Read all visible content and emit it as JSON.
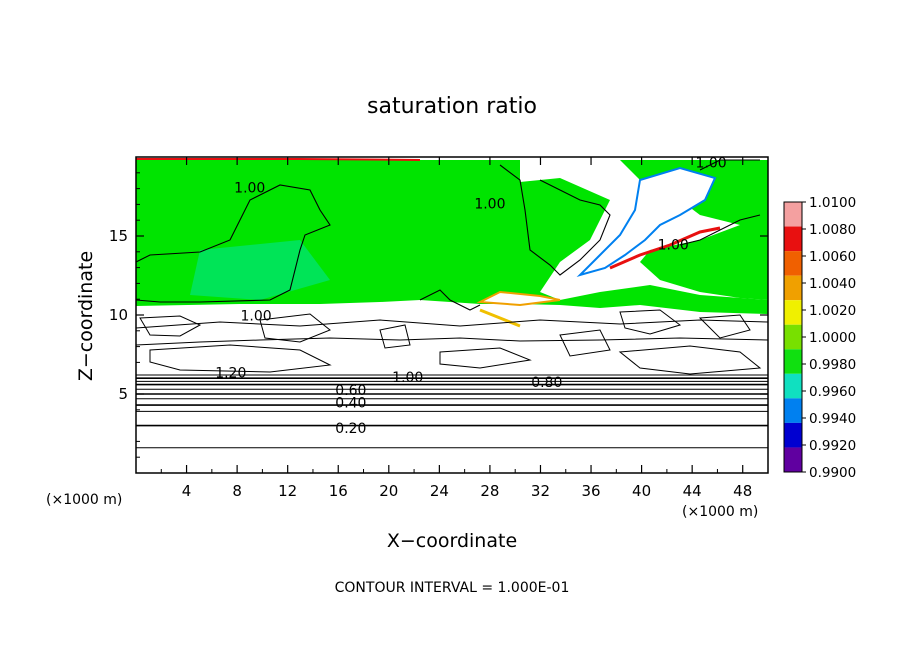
{
  "chart_data": {
    "type": "heatmap",
    "title": "saturation ratio",
    "xlabel": "X−coordinate",
    "ylabel": "Z−coordinate",
    "x_unit": "(×1000 m)",
    "y_unit": "(×1000 m)",
    "xlim": [
      0,
      50
    ],
    "ylim": [
      0,
      20
    ],
    "x_ticks": [
      4,
      8,
      12,
      16,
      20,
      24,
      28,
      32,
      36,
      40,
      44,
      48
    ],
    "x_tick_labels": [
      "4",
      "8",
      "12",
      "16",
      "20",
      "24",
      "28",
      "32",
      "36",
      "40",
      "44",
      "48"
    ],
    "y_ticks": [
      5,
      10,
      15
    ],
    "y_tick_labels": [
      "5",
      "10",
      "15"
    ],
    "footer": "CONTOUR INTERVAL = 1.000E-01",
    "colorbar": {
      "levels": [
        "1.0100",
        "1.0080",
        "1.0060",
        "1.0040",
        "1.0020",
        "1.0000",
        "0.9980",
        "0.9960",
        "0.9940",
        "0.9920",
        "0.9900"
      ],
      "colors": [
        "#f4a0a0",
        "#e81010",
        "#f06000",
        "#f0a000",
        "#f0f000",
        "#78e000",
        "#10e010",
        "#10e0c0",
        "#0080f0",
        "#0000d0",
        "#6000a0"
      ]
    },
    "fill_colors": {
      "background": "#ffffff",
      "saturated": "#00e400",
      "saturated_light": "#00e4c0",
      "supersaturated": "#f0c000"
    },
    "contour_labels": [
      {
        "text": "1.00",
        "x": 9.0,
        "z": 18.0
      },
      {
        "text": "1.00",
        "x": 28.0,
        "z": 17.0
      },
      {
        "text": "1.00",
        "x": 45.5,
        "z": 19.6
      },
      {
        "text": "1.00",
        "x": 42.5,
        "z": 14.4
      },
      {
        "text": "1.00",
        "x": 9.5,
        "z": 9.9
      },
      {
        "text": "1.20",
        "x": 7.5,
        "z": 6.3
      },
      {
        "text": "1.00",
        "x": 21.5,
        "z": 6.0
      },
      {
        "text": "0.80",
        "x": 32.5,
        "z": 5.7
      },
      {
        "text": "0.60",
        "x": 17.0,
        "z": 5.2
      },
      {
        "text": "0.40",
        "x": 17.0,
        "z": 4.4
      },
      {
        "text": "0.20",
        "x": 17.0,
        "z": 2.8
      }
    ],
    "level_contours_z": [
      1.6,
      3.0,
      3.9,
      4.3,
      4.7,
      5.0,
      5.3,
      5.6,
      5.8,
      6.0,
      6.2
    ]
  }
}
